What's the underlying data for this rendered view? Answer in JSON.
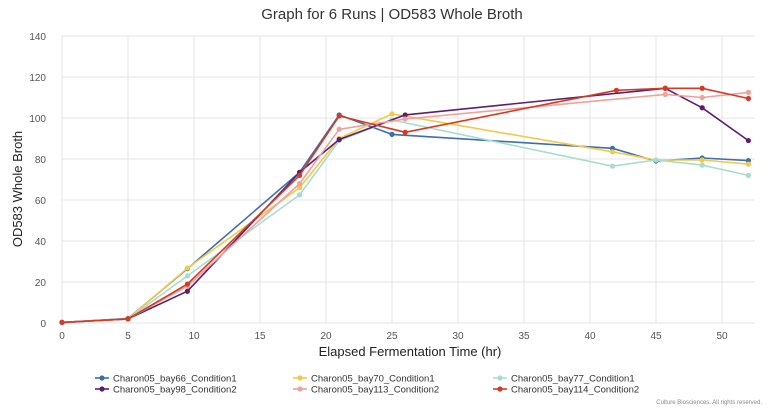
{
  "chart_data": {
    "type": "line",
    "title": "Graph for 6 Runs | OD583 Whole Broth",
    "xlabel": "Elapsed Fermentation Time (hr)",
    "ylabel": "OD583 Whole Broth",
    "xlim": [
      0,
      52.5
    ],
    "ylim": [
      0,
      140
    ],
    "x_ticks": [
      0,
      5,
      10,
      15,
      20,
      25,
      30,
      35,
      40,
      45,
      50
    ],
    "y_ticks": [
      0,
      20,
      40,
      60,
      80,
      100,
      120,
      140
    ],
    "grid": true,
    "legend_position": "bottom",
    "footer": "Culture Biosciences. All rights reserved.",
    "series": [
      {
        "name": "Charon05_bay66_Condition1",
        "color": "#3d6fa8",
        "x": [
          0,
          5,
          9.5,
          18,
          21,
          25,
          41.7,
          45,
          48.5,
          52
        ],
        "y": [
          0.3,
          2.2,
          26.5,
          73.5,
          101.5,
          92,
          85.2,
          79,
          80.5,
          79.2
        ]
      },
      {
        "name": "Charon05_bay70_Condition1",
        "color": "#f2c94c",
        "x": [
          0,
          5,
          9.5,
          18,
          21,
          25,
          41.7,
          45,
          48.5,
          52
        ],
        "y": [
          0.3,
          2,
          26.8,
          66,
          90,
          102,
          83.5,
          79.5,
          79.5,
          77.5
        ]
      },
      {
        "name": "Charon05_bay77_Condition1",
        "color": "#a8dcd0",
        "x": [
          0,
          5,
          9.5,
          18,
          21,
          25,
          41.7,
          45,
          48.5,
          52
        ],
        "y": [
          0.3,
          2,
          23,
          62.5,
          89,
          99,
          76.5,
          79.5,
          77,
          72
        ]
      },
      {
        "name": "Charon05_bay98_Condition2",
        "color": "#5b1f6e",
        "x": [
          0,
          5,
          9.5,
          18,
          21,
          26,
          45.7,
          48.5,
          52
        ],
        "y": [
          0.3,
          2,
          15.5,
          73.5,
          89.5,
          101.5,
          114.5,
          105,
          89
        ]
      },
      {
        "name": "Charon05_bay113_Condition2",
        "color": "#f0a199",
        "x": [
          0,
          5,
          9.5,
          18,
          21,
          26,
          45.7,
          48.5,
          52
        ],
        "y": [
          0.3,
          2,
          18,
          68,
          94.5,
          99.5,
          111.5,
          110,
          112.5
        ]
      },
      {
        "name": "Charon05_bay114_Condition2",
        "color": "#d63a22",
        "x": [
          0,
          5,
          9.5,
          18,
          21,
          26,
          42,
          45.7,
          48.5,
          52
        ],
        "y": [
          0.3,
          2,
          19,
          72,
          101,
          93,
          113.5,
          114.5,
          114.5,
          109.5
        ]
      }
    ]
  }
}
